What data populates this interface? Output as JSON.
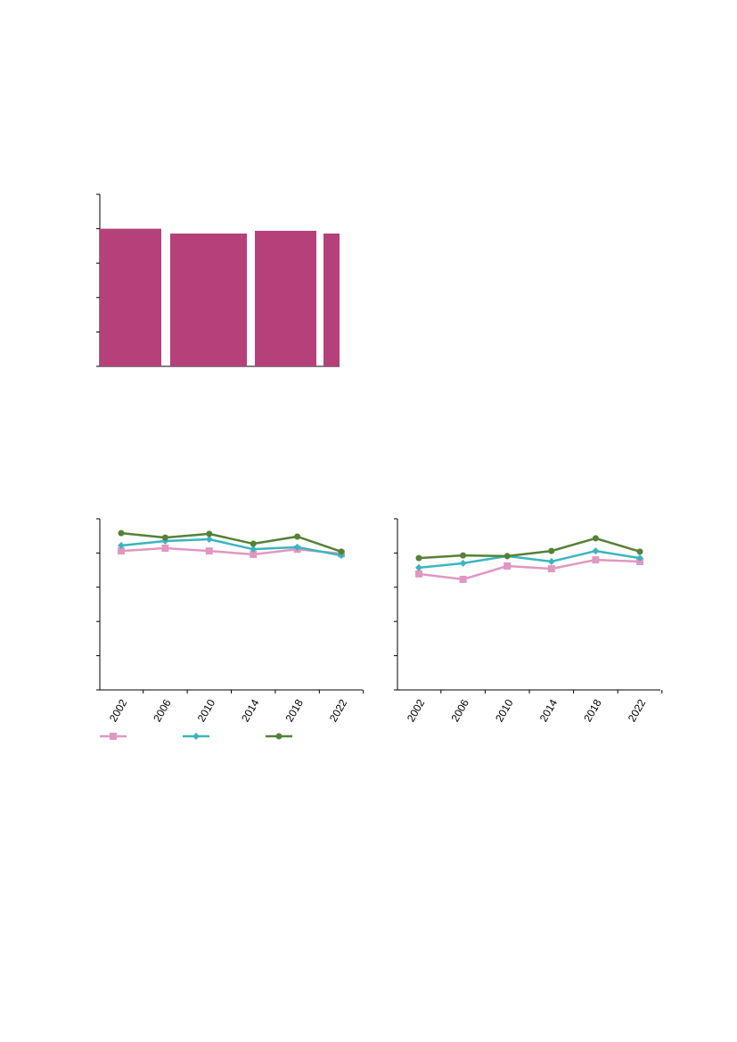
{
  "chart_data": [
    {
      "type": "bar",
      "categories": [
        null,
        null,
        null,
        null
      ],
      "values": [
        4.0,
        3.86,
        3.94,
        3.86
      ],
      "color": "#b5407a",
      "ylim": [
        0,
        5
      ],
      "yticks": [
        0,
        1,
        2,
        3,
        4,
        5
      ]
    },
    {
      "type": "line",
      "categories": [
        "2002",
        "2006",
        "2010",
        "2014",
        "2018",
        "2022"
      ],
      "ylim": [
        0,
        5
      ],
      "yticks": [
        0,
        1,
        2,
        3,
        4,
        5
      ],
      "series": [
        {
          "color": "#e197c0",
          "marker": "square",
          "values": [
            4.06,
            4.14,
            4.06,
            3.96,
            4.11,
            3.98
          ]
        },
        {
          "color": "#3ab5be",
          "marker": "diamond",
          "values": [
            4.22,
            4.35,
            4.4,
            4.11,
            4.17,
            3.93
          ]
        },
        {
          "color": "#548235",
          "marker": "circle",
          "values": [
            4.58,
            4.45,
            4.56,
            4.27,
            4.48,
            4.04
          ]
        }
      ]
    },
    {
      "type": "line",
      "categories": [
        "2002",
        "2006",
        "2010",
        "2014",
        "2018",
        "2022"
      ],
      "ylim": [
        0,
        5
      ],
      "yticks": [
        0,
        1,
        2,
        3,
        4,
        5
      ],
      "series": [
        {
          "color": "#e197c0",
          "marker": "square",
          "values": [
            3.39,
            3.23,
            3.62,
            3.54,
            3.8,
            3.75
          ]
        },
        {
          "color": "#3ab5be",
          "marker": "diamond",
          "values": [
            3.57,
            3.7,
            3.91,
            3.75,
            4.06,
            3.85
          ]
        },
        {
          "color": "#548235",
          "marker": "circle",
          "values": [
            3.85,
            3.93,
            3.91,
            4.06,
            4.43,
            4.04
          ]
        }
      ]
    }
  ]
}
